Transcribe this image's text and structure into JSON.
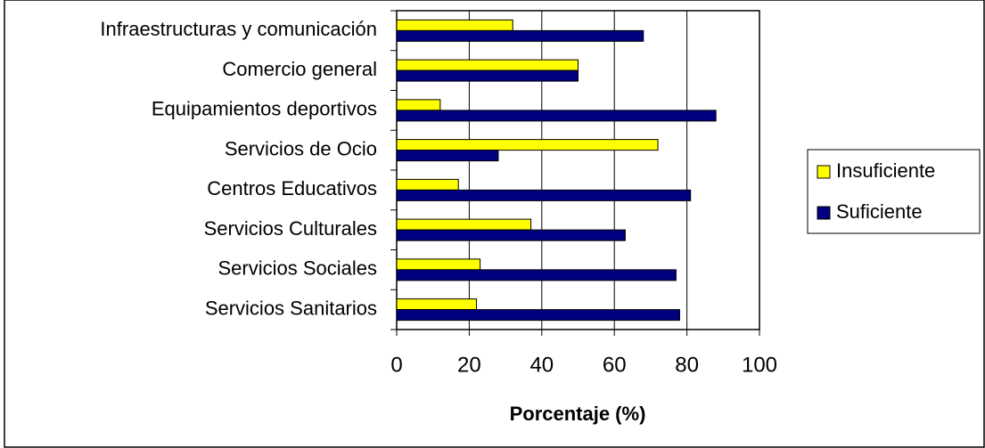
{
  "chart_data": {
    "type": "barh",
    "categories": [
      "Infraestructuras y comunicación",
      "Comercio general",
      "Equipamientos deportivos",
      "Servicios de Ocio",
      "Centros Educativos",
      "Servicios Culturales",
      "Servicios Sociales",
      "Servicios Sanitarios"
    ],
    "series": [
      {
        "name": "Insuficiente",
        "color": "#ffff00",
        "values": [
          32,
          50,
          12,
          72,
          17,
          37,
          23,
          22
        ]
      },
      {
        "name": "Suficiente",
        "color": "#000080",
        "values": [
          68,
          50,
          88,
          28,
          81,
          63,
          77,
          78
        ]
      }
    ],
    "xlabel": "Porcentaje (%)",
    "xlim": [
      0,
      100
    ],
    "xticks": [
      0,
      20,
      40,
      60,
      80,
      100
    ],
    "grid": true,
    "legend": "right"
  }
}
